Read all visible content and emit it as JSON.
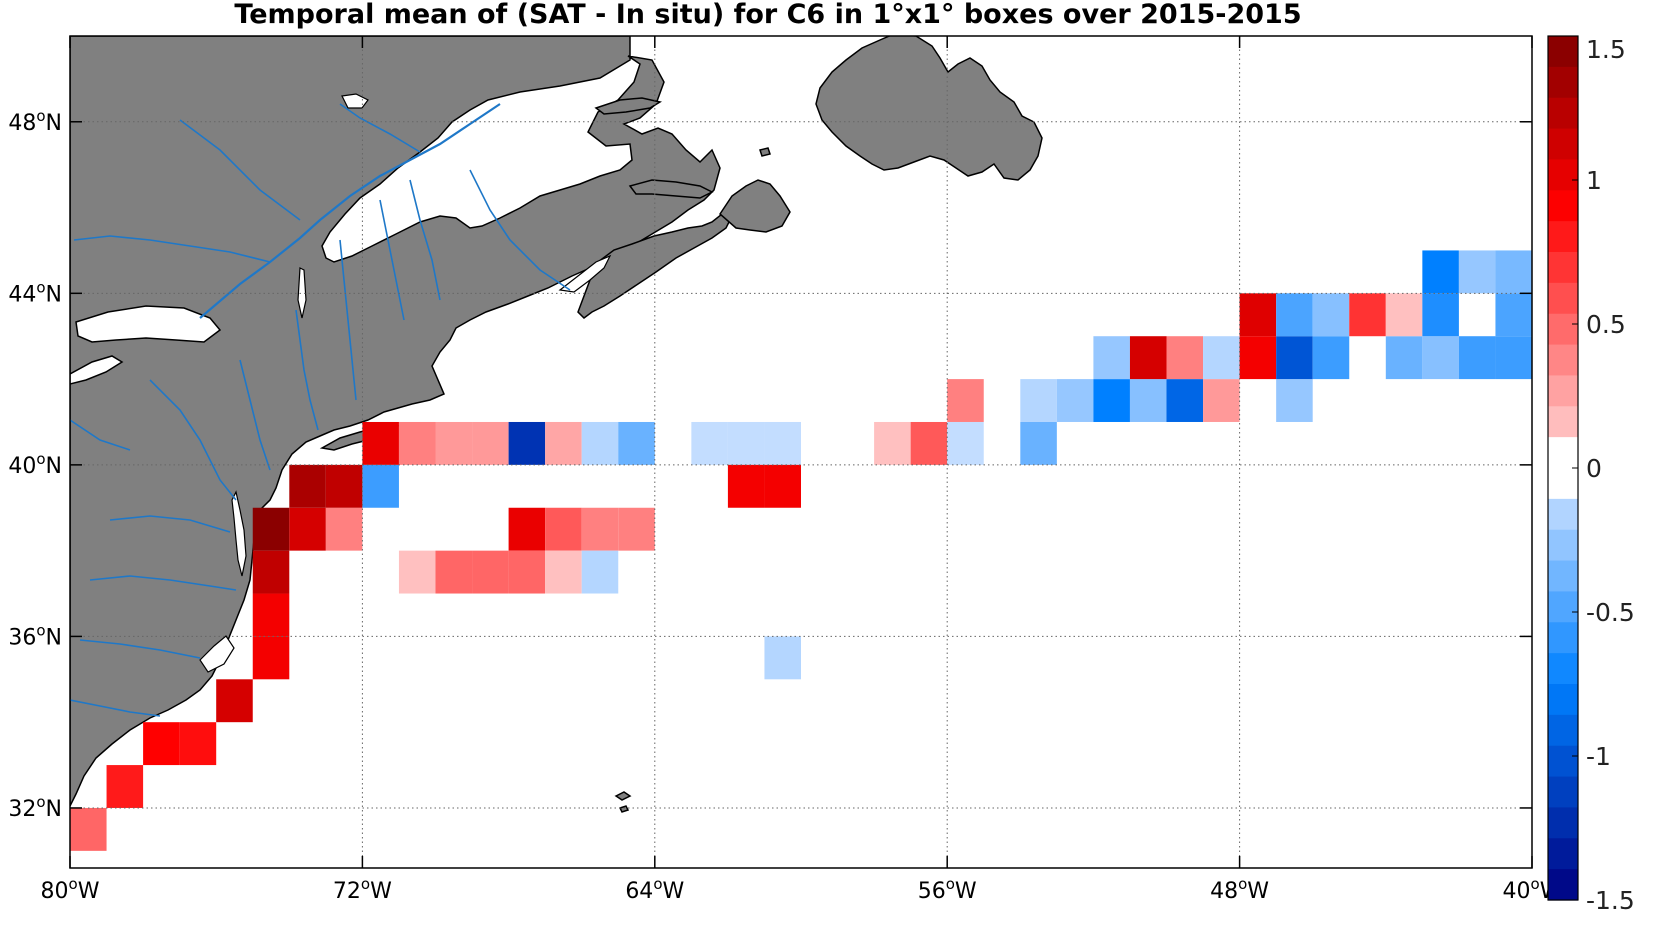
{
  "title": "Temporal mean of (SAT - In situ) for C6 in 1°x1° boxes over 2015-2015",
  "colors": {
    "land": "#808080",
    "coast": "#000000",
    "river": "#1f78c8",
    "grid": "#666666",
    "frame": "#000000"
  },
  "axes": {
    "lon_ticks": [
      {
        "value": -80,
        "label": "80",
        "suffix": "W"
      },
      {
        "value": -72,
        "label": "72",
        "suffix": "W"
      },
      {
        "value": -64,
        "label": "64",
        "suffix": "W"
      },
      {
        "value": -56,
        "label": "56",
        "suffix": "W"
      },
      {
        "value": -48,
        "label": "48",
        "suffix": "W"
      },
      {
        "value": -40,
        "label": "40",
        "suffix": "W"
      }
    ],
    "lat_ticks": [
      {
        "value": 32,
        "label": "32",
        "suffix": "N"
      },
      {
        "value": 36,
        "label": "36",
        "suffix": "N"
      },
      {
        "value": 40,
        "label": "40",
        "suffix": "N"
      },
      {
        "value": 44,
        "label": "44",
        "suffix": "N"
      },
      {
        "value": 48,
        "label": "48",
        "suffix": "N"
      }
    ],
    "degree_symbol": "o",
    "lon_range": [
      -80,
      -40
    ],
    "lat_range": [
      30.6,
      50
    ]
  },
  "colorbar": {
    "min": -1.5,
    "max": 1.5,
    "levels": 28,
    "ticks": [
      {
        "value": 1.5,
        "label": "1.5"
      },
      {
        "value": 1,
        "label": "1"
      },
      {
        "value": 0.5,
        "label": "0.5"
      },
      {
        "value": 0,
        "label": "0"
      },
      {
        "value": -0.5,
        "label": "-0.5"
      },
      {
        "value": -1,
        "label": "-1"
      },
      {
        "value": -1.5,
        "label": "-1.5"
      }
    ]
  },
  "chart_data": {
    "type": "heatmap",
    "title": "Temporal mean of (SAT - In situ) for C6 in 1°x1° boxes over 2015-2015",
    "cell_size_deg": 1,
    "cells": [
      {
        "lon": -80,
        "lat": 31,
        "value": 0.5
      },
      {
        "lon": -79,
        "lat": 32,
        "value": 0.8
      },
      {
        "lon": -78,
        "lat": 33,
        "value": 0.9
      },
      {
        "lon": -77,
        "lat": 33,
        "value": 0.85
      },
      {
        "lon": -76,
        "lat": 34,
        "value": 1.1
      },
      {
        "lon": -75,
        "lat": 35,
        "value": 0.95
      },
      {
        "lon": -75,
        "lat": 36,
        "value": 0.95
      },
      {
        "lon": -75,
        "lat": 37,
        "value": 1.2
      },
      {
        "lon": -75,
        "lat": 38,
        "value": 1.45
      },
      {
        "lon": -74,
        "lat": 38,
        "value": 1.1
      },
      {
        "lon": -73,
        "lat": 38,
        "value": 0.4
      },
      {
        "lon": -74,
        "lat": 39,
        "value": 1.3
      },
      {
        "lon": -73,
        "lat": 39,
        "value": 1.2
      },
      {
        "lon": -72,
        "lat": 39,
        "value": -0.55
      },
      {
        "lon": -72,
        "lat": 40,
        "value": 1.0
      },
      {
        "lon": -71,
        "lat": 40,
        "value": 0.4
      },
      {
        "lon": -70,
        "lat": 40,
        "value": 0.3
      },
      {
        "lon": -69,
        "lat": 40,
        "value": 0.3
      },
      {
        "lon": -68,
        "lat": 40,
        "value": -1.2
      },
      {
        "lon": -67,
        "lat": 40,
        "value": 0.25
      },
      {
        "lon": -66,
        "lat": 40,
        "value": -0.15
      },
      {
        "lon": -65,
        "lat": 40,
        "value": -0.4
      },
      {
        "lon": -63,
        "lat": 40,
        "value": -0.1
      },
      {
        "lon": -62,
        "lat": 40,
        "value": -0.1
      },
      {
        "lon": -61,
        "lat": 40,
        "value": -0.1
      },
      {
        "lon": -58,
        "lat": 40,
        "value": 0.15
      },
      {
        "lon": -57,
        "lat": 40,
        "value": 0.55
      },
      {
        "lon": -56,
        "lat": 40,
        "value": -0.1
      },
      {
        "lon": -54,
        "lat": 40,
        "value": -0.4
      },
      {
        "lon": -62,
        "lat": 39,
        "value": 0.95
      },
      {
        "lon": -61,
        "lat": 39,
        "value": 0.95
      },
      {
        "lon": -68,
        "lat": 38,
        "value": 1.0
      },
      {
        "lon": -67,
        "lat": 38,
        "value": 0.55
      },
      {
        "lon": -66,
        "lat": 38,
        "value": 0.4
      },
      {
        "lon": -65,
        "lat": 38,
        "value": 0.4
      },
      {
        "lon": -71,
        "lat": 37,
        "value": 0.15
      },
      {
        "lon": -70,
        "lat": 37,
        "value": 0.5
      },
      {
        "lon": -69,
        "lat": 37,
        "value": 0.5
      },
      {
        "lon": -68,
        "lat": 37,
        "value": 0.5
      },
      {
        "lon": -67,
        "lat": 37,
        "value": 0.15
      },
      {
        "lon": -66,
        "lat": 37,
        "value": -0.15
      },
      {
        "lon": -61,
        "lat": 35,
        "value": -0.15
      },
      {
        "lon": -56,
        "lat": 41,
        "value": 0.4
      },
      {
        "lon": -54,
        "lat": 41,
        "value": -0.15
      },
      {
        "lon": -53,
        "lat": 41,
        "value": -0.25
      },
      {
        "lon": -52,
        "lat": 41,
        "value": -0.75
      },
      {
        "lon": -51,
        "lat": 41,
        "value": -0.3
      },
      {
        "lon": -50,
        "lat": 41,
        "value": -0.9
      },
      {
        "lon": -49,
        "lat": 41,
        "value": 0.3
      },
      {
        "lon": -47,
        "lat": 41,
        "value": -0.25
      },
      {
        "lon": -52,
        "lat": 42,
        "value": -0.25
      },
      {
        "lon": -51,
        "lat": 42,
        "value": 1.1
      },
      {
        "lon": -50,
        "lat": 42,
        "value": 0.4
      },
      {
        "lon": -49,
        "lat": 42,
        "value": -0.15
      },
      {
        "lon": -48,
        "lat": 42,
        "value": 0.95
      },
      {
        "lon": -47,
        "lat": 42,
        "value": -1.0
      },
      {
        "lon": -46,
        "lat": 42,
        "value": -0.55
      },
      {
        "lon": -44,
        "lat": 42,
        "value": -0.4
      },
      {
        "lon": -43,
        "lat": 42,
        "value": -0.3
      },
      {
        "lon": -42,
        "lat": 42,
        "value": -0.55
      },
      {
        "lon": -41,
        "lat": 42,
        "value": -0.55
      },
      {
        "lon": -48,
        "lat": 43,
        "value": 1.05
      },
      {
        "lon": -47,
        "lat": 43,
        "value": -0.5
      },
      {
        "lon": -46,
        "lat": 43,
        "value": -0.3
      },
      {
        "lon": -45,
        "lat": 43,
        "value": 0.7
      },
      {
        "lon": -44,
        "lat": 43,
        "value": 0.15
      },
      {
        "lon": -43,
        "lat": 43,
        "value": -0.65
      },
      {
        "lon": -41,
        "lat": 43,
        "value": -0.5
      },
      {
        "lon": -43,
        "lat": 44,
        "value": -0.75
      },
      {
        "lon": -42,
        "lat": 44,
        "value": -0.25
      },
      {
        "lon": -41,
        "lat": 44,
        "value": -0.35
      }
    ]
  }
}
